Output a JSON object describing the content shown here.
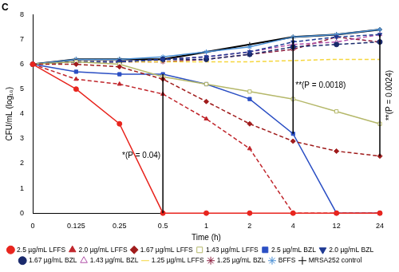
{
  "chart_data": {
    "type": "line",
    "title": "C",
    "x_label": "Time (h)",
    "y_label": "CFU/mL (log₁₀)",
    "categories": [
      "0",
      "0.125",
      "0.25",
      "0.5",
      "1",
      "2",
      "4",
      "12",
      "24"
    ],
    "ylim": [
      0,
      8
    ],
    "yticks": [
      0,
      1,
      2,
      3,
      4,
      5,
      6,
      7,
      8
    ],
    "grid": false,
    "legend": "bottom",
    "series": [
      {
        "name": "2.5 µg/mL LFFS",
        "color": "#e8251e",
        "line_style": "solid",
        "marker": "circle",
        "values": [
          6,
          5.0,
          3.6,
          0,
          0,
          0,
          0,
          0,
          0
        ]
      },
      {
        "name": "2.0 µg/mL LFFS",
        "color": "#c0262c",
        "line_style": "dashed",
        "marker": "triangle",
        "values": [
          6,
          5.4,
          5.2,
          4.8,
          3.8,
          2.6,
          0,
          0,
          0
        ]
      },
      {
        "name": "1.67 µg/mL LFFS",
        "color": "#a01c1c",
        "line_style": "dashed",
        "marker": "diamond",
        "values": [
          6,
          6.0,
          5.9,
          5.4,
          4.5,
          3.6,
          2.9,
          2.5,
          2.3
        ]
      },
      {
        "name": "1.43 µg/mL LFFS",
        "color": "#b5b86a",
        "line_style": "solid",
        "marker": "square_open",
        "values": [
          6,
          6.1,
          6.0,
          5.5,
          5.2,
          4.9,
          4.6,
          4.1,
          3.6
        ]
      },
      {
        "name": "2.5 µg/mL BZL",
        "color": "#2b4fc4",
        "line_style": "solid",
        "marker": "square",
        "values": [
          6,
          5.7,
          5.6,
          5.6,
          5.2,
          4.6,
          3.2,
          0,
          0
        ]
      },
      {
        "name": "2.0 µg/mL BZL",
        "color": "#1f3a93",
        "line_style": "dashed",
        "marker": "triangle_down",
        "values": [
          6,
          6.1,
          6.1,
          6.2,
          6.3,
          6.5,
          6.9,
          7.1,
          7.2
        ]
      },
      {
        "name": "1.67 µg/mL BZL",
        "color": "#1a2a6c",
        "line_style": "dashed",
        "marker": "circle",
        "values": [
          6,
          6.1,
          6.1,
          6.2,
          6.2,
          6.4,
          6.7,
          6.8,
          6.9
        ]
      },
      {
        "name": "1.43 µg/mL BZL",
        "color": "#b04fa8",
        "line_style": "dashed",
        "marker": "triangle_open",
        "values": [
          6,
          6.1,
          6.1,
          6.2,
          6.3,
          6.5,
          6.8,
          6.9,
          7.2
        ]
      },
      {
        "name": "1.25 µg/mL LFFS",
        "color": "#f5d63d",
        "line_style": "dashed",
        "marker": "none",
        "values": [
          6,
          6.1,
          6.1,
          6.1,
          6.1,
          6.1,
          6.15,
          6.2,
          6.2
        ]
      },
      {
        "name": "1.25 µg/mL BZL",
        "color": "#8a1c3c",
        "line_style": "dashed",
        "marker": "star",
        "values": [
          6,
          6.1,
          6.1,
          6.1,
          6.2,
          6.4,
          6.6,
          7.1,
          6.9
        ]
      },
      {
        "name": "BFFS",
        "color": "#4a8fd4",
        "line_style": "solid",
        "marker": "star",
        "values": [
          6,
          6.2,
          6.2,
          6.3,
          6.5,
          6.7,
          7.1,
          7.2,
          7.4
        ]
      },
      {
        "name": "MRSA252 control",
        "color": "#000000",
        "line_style": "solid",
        "marker": "cross",
        "values": [
          6,
          6.2,
          6.2,
          6.2,
          6.5,
          6.8,
          7.1,
          7.2,
          7.4
        ]
      }
    ],
    "annotations": [
      {
        "text": "*(P = 0.04)",
        "x": "0.5",
        "y_from": 0,
        "y_to": 5.6
      },
      {
        "text": "**(P = 0.0018)",
        "x": "4",
        "y_from": 3.2,
        "y_to": 7.1
      },
      {
        "text": "**(P = 0.0024)",
        "x": "24",
        "y_from": 2.3,
        "y_to": 7.2
      }
    ]
  }
}
